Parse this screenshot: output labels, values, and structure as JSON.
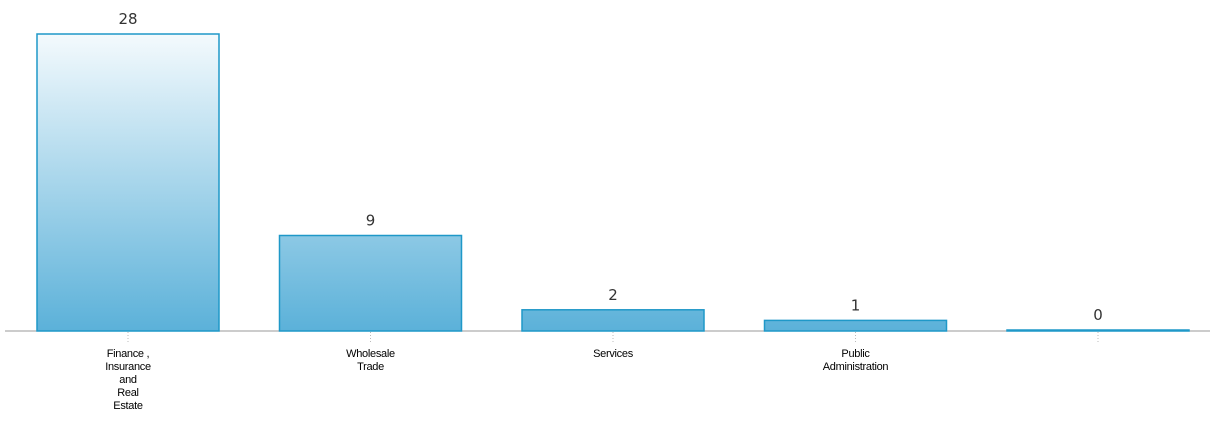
{
  "chart_data": {
    "type": "bar",
    "categories": [
      [
        "Finance ,",
        "Insurance",
        "and",
        "Real",
        "Estate"
      ],
      [
        "Wholesale",
        "Trade"
      ],
      [
        "Services"
      ],
      [
        "Public",
        "Administration"
      ],
      [
        ""
      ]
    ],
    "values": [
      28,
      9,
      2,
      1,
      0
    ],
    "value_labels": [
      "28",
      "9",
      "2",
      "1",
      "0"
    ],
    "title": "",
    "xlabel": "",
    "ylabel": "",
    "ylim": [
      0,
      28
    ],
    "grid": false,
    "legend": "none",
    "colors": {
      "bar_top": "#f4fafd",
      "bar_bottom": "#5bb1d9",
      "bar_stroke": "#1f98c8",
      "axis": "#999999"
    }
  }
}
